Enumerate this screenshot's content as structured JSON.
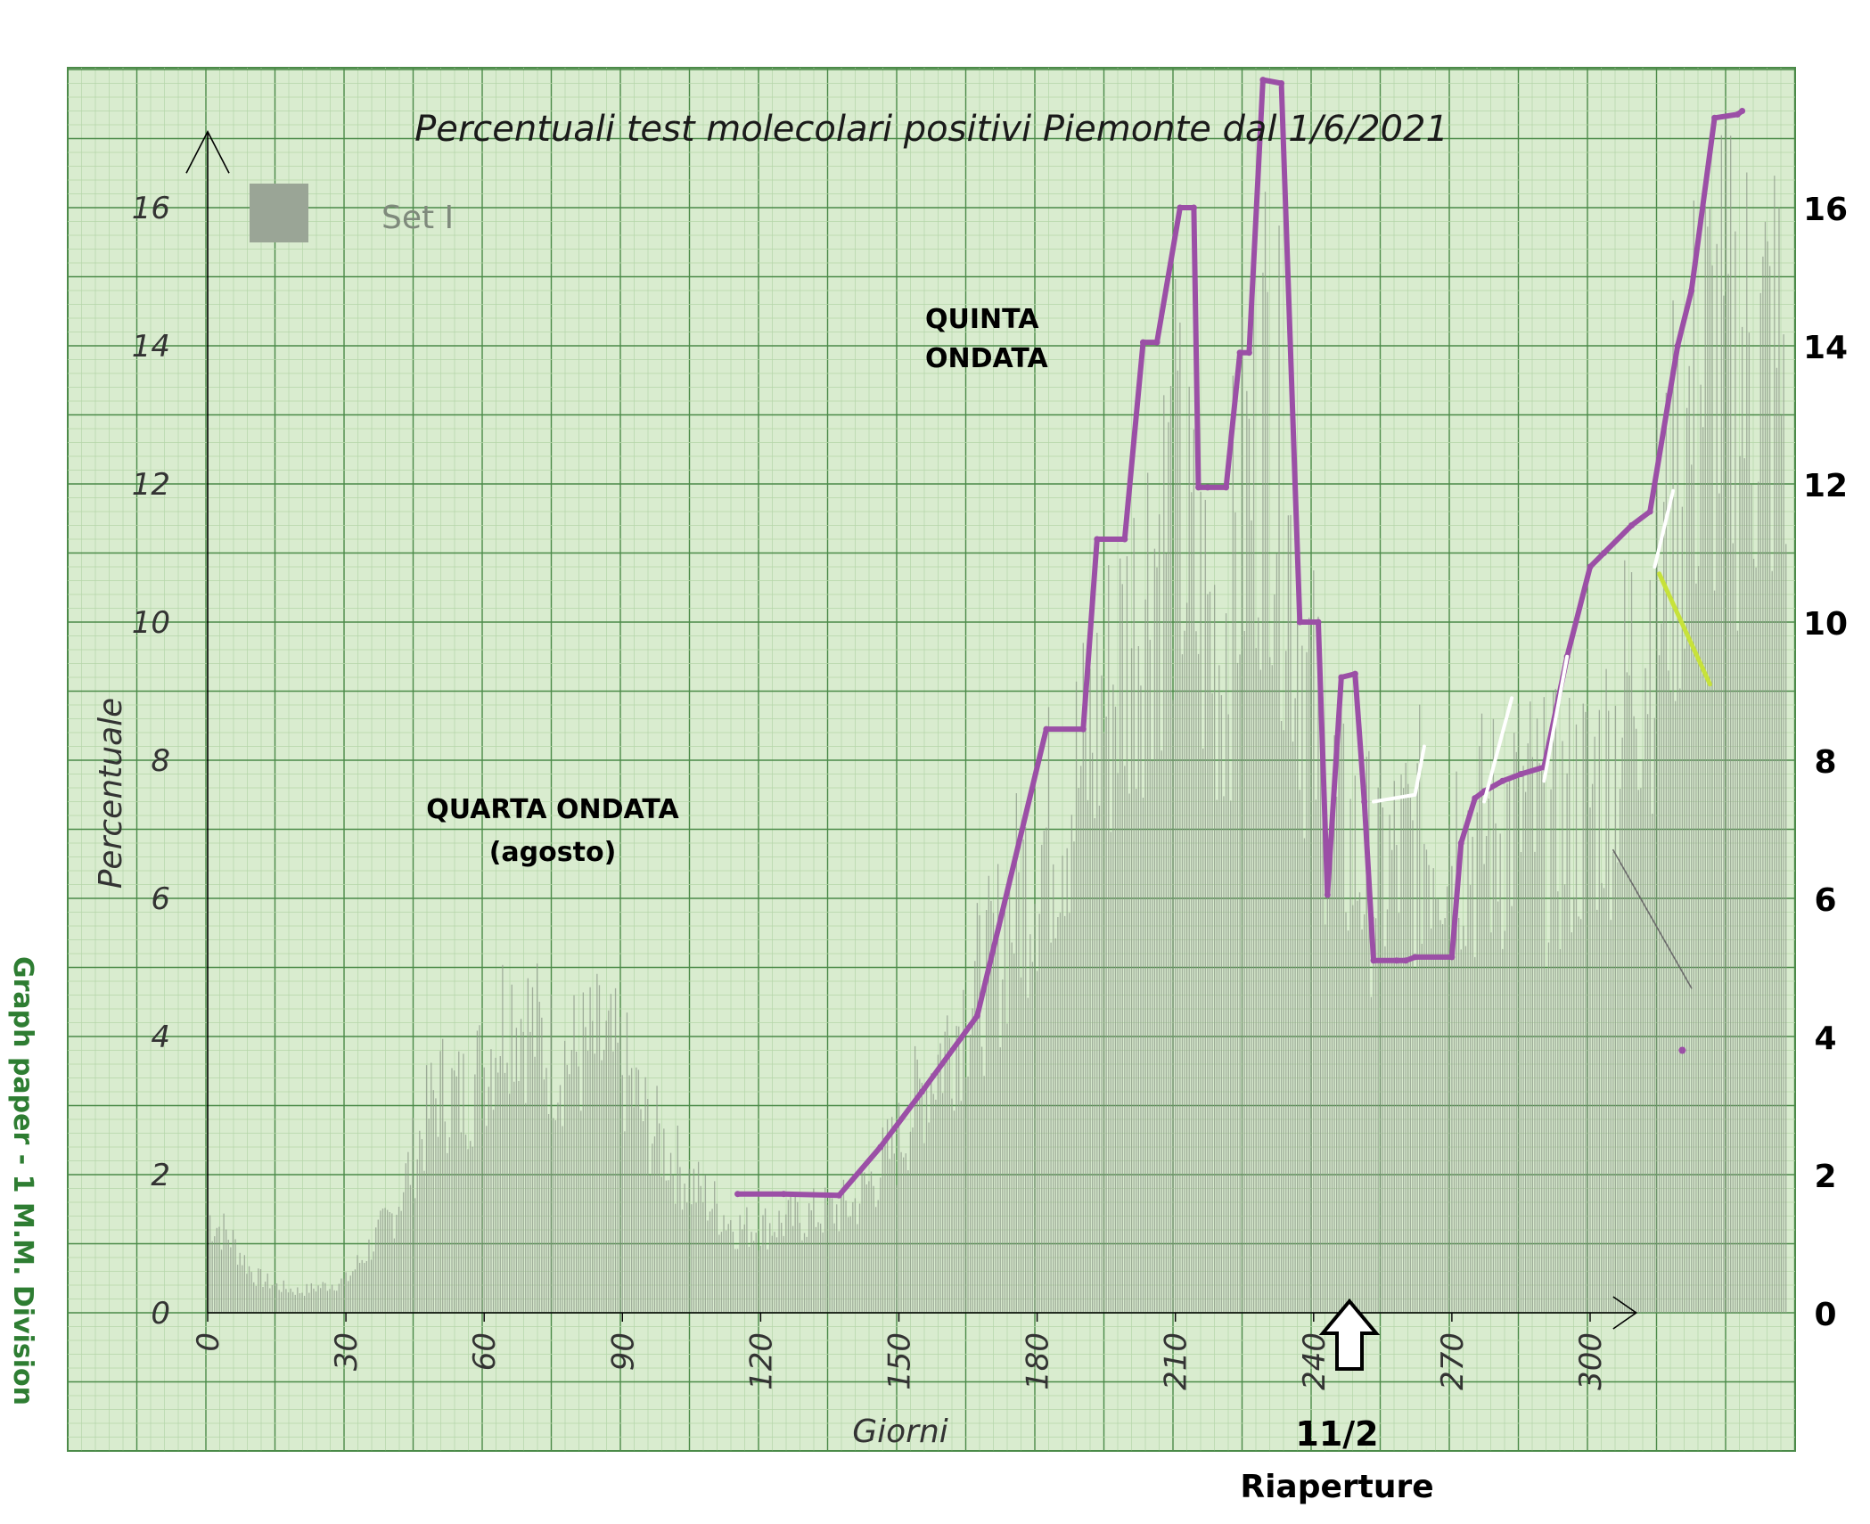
{
  "chart_data": {
    "type": "bar",
    "title": "Percentuali test molecolari positivi Piemonte dal 1/6/2021",
    "xlabel": "Giorni",
    "ylabel": "Percentuale",
    "legend": {
      "label": "Set I",
      "placement": "top-left"
    },
    "grid": true,
    "xlim": [
      0,
      320
    ],
    "ylim": [
      0,
      18
    ],
    "x_ticks": [
      "0",
      "30",
      "60",
      "90",
      "120",
      "150",
      "180",
      "210",
      "240",
      "270",
      "300"
    ],
    "y_ticks": [
      "0",
      "2",
      "4",
      "6",
      "8",
      "10",
      "12",
      "14",
      "16"
    ],
    "y_ticks_right": [
      "0",
      "2",
      "4",
      "6",
      "8",
      "10",
      "12",
      "14",
      "16"
    ],
    "bars_envelope_by_day": [
      [
        0,
        1.8
      ],
      [
        5,
        1.4
      ],
      [
        10,
        0.7
      ],
      [
        15,
        0.5
      ],
      [
        20,
        0.4
      ],
      [
        25,
        0.5
      ],
      [
        30,
        0.6
      ],
      [
        35,
        1.2
      ],
      [
        40,
        1.8
      ],
      [
        45,
        3.0
      ],
      [
        50,
        4.2
      ],
      [
        55,
        4.0
      ],
      [
        60,
        4.6
      ],
      [
        65,
        5.8
      ],
      [
        70,
        5.4
      ],
      [
        75,
        4.8
      ],
      [
        80,
        4.8
      ],
      [
        85,
        5.0
      ],
      [
        90,
        4.6
      ],
      [
        95,
        3.6
      ],
      [
        100,
        3.0
      ],
      [
        105,
        2.4
      ],
      [
        110,
        2.0
      ],
      [
        115,
        1.6
      ],
      [
        120,
        1.6
      ],
      [
        125,
        1.7
      ],
      [
        130,
        1.8
      ],
      [
        135,
        1.9
      ],
      [
        140,
        2.0
      ],
      [
        145,
        2.6
      ],
      [
        150,
        3.2
      ],
      [
        155,
        4.2
      ],
      [
        160,
        5.0
      ],
      [
        165,
        5.8
      ],
      [
        170,
        6.4
      ],
      [
        175,
        7.6
      ],
      [
        180,
        8.6
      ],
      [
        185,
        9.4
      ],
      [
        190,
        10.2
      ],
      [
        195,
        11.4
      ],
      [
        200,
        12.6
      ],
      [
        205,
        14.2
      ],
      [
        210,
        15.2
      ],
      [
        215,
        13.2
      ],
      [
        220,
        12.4
      ],
      [
        225,
        15.0
      ],
      [
        230,
        17.5
      ],
      [
        235,
        14.0
      ],
      [
        240,
        11.0
      ],
      [
        245,
        9.2
      ],
      [
        250,
        8.4
      ],
      [
        255,
        8.2
      ],
      [
        260,
        8.6
      ],
      [
        265,
        9.0
      ],
      [
        270,
        9.2
      ],
      [
        275,
        8.8
      ],
      [
        280,
        9.0
      ],
      [
        285,
        9.4
      ],
      [
        290,
        9.0
      ],
      [
        295,
        9.2
      ],
      [
        300,
        9.6
      ],
      [
        305,
        10.4
      ],
      [
        310,
        12.4
      ],
      [
        315,
        13.4
      ],
      [
        320,
        15.8
      ],
      [
        325,
        17.6
      ]
    ],
    "series": [
      {
        "type": "line",
        "color": "#9b4fa6",
        "x": [
          115,
          125,
          137,
          146,
          155,
          167,
          182,
          190,
          193,
          199,
          203,
          206,
          211,
          214,
          215,
          217,
          221,
          224,
          226,
          229,
          233,
          237,
          241,
          243,
          246,
          249,
          251,
          253,
          258,
          260,
          262,
          270,
          272,
          275,
          277,
          281,
          285,
          290,
          295,
          300,
          303,
          309,
          313,
          319,
          322,
          327,
          332,
          333
        ],
        "y": [
          1.72,
          1.72,
          1.7,
          2.4,
          3.2,
          4.3,
          8.45,
          8.45,
          11.2,
          11.2,
          14.05,
          14.05,
          16.0,
          16.0,
          11.95,
          11.95,
          11.95,
          13.9,
          13.9,
          17.85,
          17.8,
          10.0,
          10.0,
          6.05,
          9.2,
          9.25,
          7.4,
          5.1,
          5.1,
          5.1,
          5.15,
          5.15,
          6.8,
          7.45,
          7.55,
          7.7,
          7.8,
          7.9,
          9.5,
          10.8,
          11.0,
          11.4,
          11.6,
          14.0,
          14.8,
          17.3,
          17.35,
          17.4
        ]
      }
    ],
    "annotations": [
      {
        "text": "QUARTA ONDATA",
        "x": 74,
        "y": 7.3
      },
      {
        "text": "(agosto)",
        "x": 74,
        "y": 6.7
      },
      {
        "text": "QUINTA",
        "x": 170,
        "y": 14.6
      },
      {
        "text": "ONDATA",
        "x": 170,
        "y": 14.0
      },
      {
        "text": "11/2",
        "x": 246,
        "y": -1.8
      },
      {
        "text": "Riaperture",
        "x": 246,
        "y": -2.6
      }
    ],
    "side_label": "Graph paper - 1 M.M. Division",
    "colors": {
      "paper": "#d9eccf",
      "grid_minor": "#b4d6a8",
      "grid_major": "#4b8a48",
      "bars": "#8e9a8a",
      "line": "#9b4fa6",
      "side_label": "#2e7d32",
      "accent_yellow": "#c7e23a"
    }
  }
}
